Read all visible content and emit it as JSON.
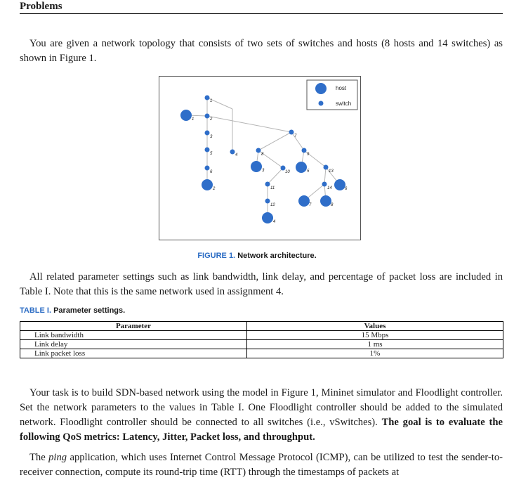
{
  "heading": "Problems",
  "intro": "You are given a network topology that consists of two sets of switches and hosts (8 hosts and 14 switches) as shown in Figure 1.",
  "figure": {
    "caption_label": "FIGURE 1.",
    "caption_text": "Network architecture.",
    "legend": {
      "host": "host",
      "switch": "switch"
    },
    "node_colors": {
      "fill": "#2f6ec9",
      "edge": "#b5b5b5"
    },
    "switch_labels": [
      "1",
      "2",
      "3",
      "4",
      "5",
      "6",
      "7",
      "8",
      "9",
      "10",
      "11",
      "12",
      "13",
      "14"
    ],
    "host_labels": [
      "1",
      "2",
      "3",
      "4",
      "5",
      "6",
      "7",
      "8"
    ]
  },
  "para2": "All related parameter settings such as link bandwidth, link delay, and percentage of packet loss are included in Table I. Note that this is the same network used in assignment 4.",
  "table": {
    "caption_label": "TABLE I.",
    "caption_text": "Parameter settings.",
    "headers": [
      "Parameter",
      "Values"
    ],
    "rows": [
      [
        "Link bandwidth",
        "15 Mbps"
      ],
      [
        "Link delay",
        "1 ms"
      ],
      [
        "Link packet loss",
        "1%"
      ]
    ]
  },
  "para3": {
    "text": "Your task is to build SDN-based network using the model in Figure 1, Mininet simulator and Floodlight controller. Set the network parameters to the values in Table I. One Floodlight controller should be added to the simulated network. Floodlight controller should be connected to all switches (i.e., vSwitches).",
    "bold": "The goal is to evaluate the following QoS metrics: Latency, Jitter, Packet loss, and throughput."
  },
  "para4": {
    "pre": "The",
    "italic": "ping",
    "post": "application, which uses Internet Control Message Protocol (ICMP), can be utilized to test the sender-to-receiver connection, compute its round-trip time (RTT) through the timestamps of packets at"
  }
}
